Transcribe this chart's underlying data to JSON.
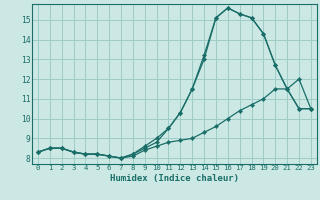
{
  "xlabel": "Humidex (Indice chaleur)",
  "bg_color": "#cce8e4",
  "grid_color": "#9fccc8",
  "line_color": "#1a6e68",
  "xlim": [
    -0.5,
    23.5
  ],
  "ylim": [
    7.7,
    15.8
  ],
  "xticks": [
    0,
    1,
    2,
    3,
    4,
    5,
    6,
    7,
    8,
    9,
    10,
    11,
    12,
    13,
    14,
    15,
    16,
    17,
    18,
    19,
    20,
    21,
    22,
    23
  ],
  "yticks": [
    8,
    9,
    10,
    11,
    12,
    13,
    14,
    15
  ],
  "curve1_x": [
    0,
    1,
    2,
    3,
    4,
    5,
    6,
    7,
    8,
    9,
    10,
    11,
    12,
    13,
    14,
    15,
    16,
    17,
    18,
    19,
    20,
    21,
    22,
    23
  ],
  "curve1_y": [
    8.3,
    8.5,
    8.5,
    8.3,
    8.2,
    8.2,
    8.1,
    8.0,
    8.2,
    8.5,
    8.8,
    9.5,
    10.3,
    11.5,
    13.2,
    15.1,
    15.6,
    15.3,
    15.1,
    14.3,
    12.7,
    11.5,
    10.5,
    10.5
  ],
  "curve2_x": [
    0,
    1,
    2,
    3,
    4,
    5,
    6,
    7,
    8,
    9,
    10,
    11,
    12,
    13,
    14,
    15,
    16,
    17,
    18,
    19,
    20,
    21,
    22,
    23
  ],
  "curve2_y": [
    8.3,
    8.5,
    8.5,
    8.3,
    8.2,
    8.2,
    8.1,
    8.0,
    8.1,
    8.4,
    8.6,
    8.8,
    8.9,
    9.0,
    9.3,
    9.6,
    10.0,
    10.4,
    10.7,
    11.0,
    11.5,
    11.5,
    12.0,
    10.5
  ],
  "curve3_x": [
    0,
    1,
    2,
    3,
    4,
    5,
    6,
    7,
    8,
    9,
    10,
    11,
    12,
    13,
    14,
    15,
    16,
    17,
    18,
    19,
    20,
    21,
    22,
    23
  ],
  "curve3_y": [
    8.3,
    8.5,
    8.5,
    8.3,
    8.2,
    8.2,
    8.1,
    8.0,
    8.2,
    8.6,
    9.0,
    9.5,
    10.3,
    11.5,
    13.0,
    15.1,
    15.6,
    15.3,
    15.1,
    14.3,
    12.7,
    11.5,
    10.5,
    10.5
  ]
}
